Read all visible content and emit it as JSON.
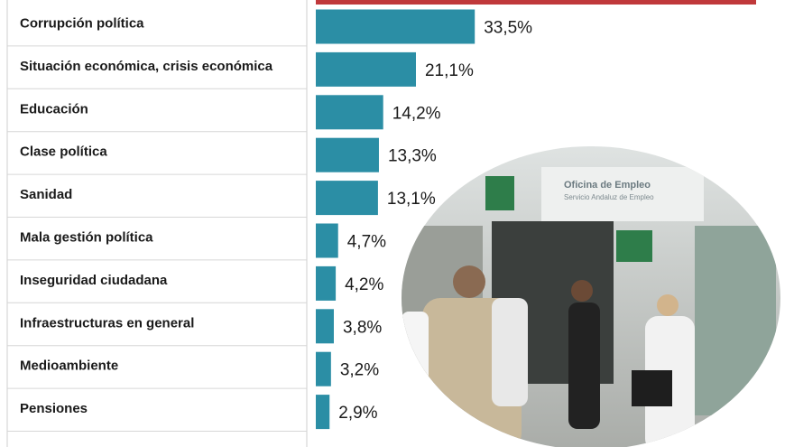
{
  "chart_data": {
    "type": "bar",
    "orientation": "horizontal",
    "categories": [
      "Corrupción política",
      "Situación económica, crisis económica",
      "Educación",
      "Clase política",
      "Sanidad",
      "Mala gestión política",
      "Inseguridad ciudadana",
      "Infraestructuras en general",
      "Medioambiente",
      "Pensiones"
    ],
    "values": [
      33.5,
      21.1,
      14.2,
      13.3,
      13.1,
      4.7,
      4.2,
      3.8,
      3.2,
      2.9
    ],
    "value_labels": [
      "33,5%",
      "21,1%",
      "14,2%",
      "13,3%",
      "13,1%",
      "4,7%",
      "4,2%",
      "3,8%",
      "3,2%",
      "2,9%"
    ],
    "color": "#2b8ea5"
  },
  "photo": {
    "sign_title": "Oficina de Empleo",
    "sign_subtitle": "Servicio Andaluz de Empleo"
  }
}
